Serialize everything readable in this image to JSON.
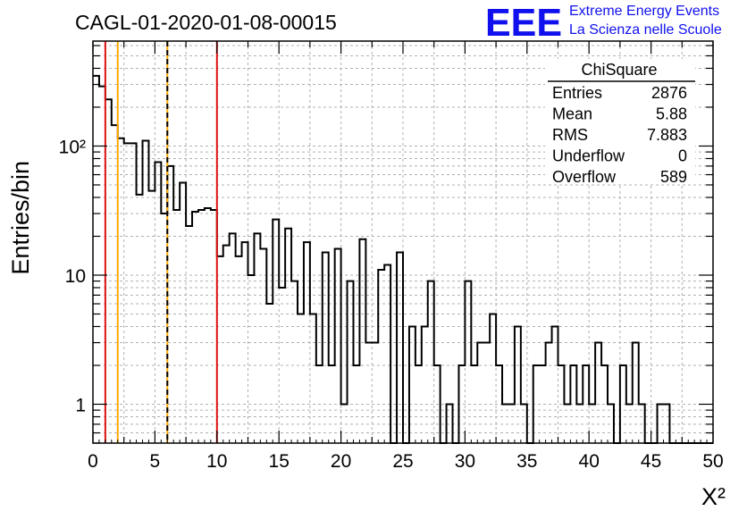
{
  "chart_data": {
    "type": "bar",
    "title": "CAGL-01-2020-01-08-00015",
    "xlabel": "X²",
    "ylabel": "Entries/bin",
    "x_range": [
      0,
      50
    ],
    "y_range": [
      0.5,
      650
    ],
    "y_scale": "log",
    "grid": true,
    "bin_width": 0.5,
    "x_ticks": [
      "0",
      "5",
      "10",
      "15",
      "20",
      "25",
      "30",
      "35",
      "40",
      "45",
      "50"
    ],
    "y_ticks": [
      {
        "value": 1,
        "label": "1"
      },
      {
        "value": 10,
        "label": "10"
      },
      {
        "value": 100,
        "label": "10²"
      }
    ],
    "bins": [
      {
        "x": 0.0,
        "y": 350
      },
      {
        "x": 0.5,
        "y": 290
      },
      {
        "x": 1.0,
        "y": 230
      },
      {
        "x": 1.5,
        "y": 145
      },
      {
        "x": 2.0,
        "y": 115
      },
      {
        "x": 2.5,
        "y": 105
      },
      {
        "x": 3.0,
        "y": 105
      },
      {
        "x": 3.5,
        "y": 42
      },
      {
        "x": 4.0,
        "y": 110
      },
      {
        "x": 4.5,
        "y": 45
      },
      {
        "x": 5.0,
        "y": 75
      },
      {
        "x": 5.5,
        "y": 30
      },
      {
        "x": 6.0,
        "y": 70
      },
      {
        "x": 6.5,
        "y": 32
      },
      {
        "x": 7.0,
        "y": 52
      },
      {
        "x": 7.5,
        "y": 24
      },
      {
        "x": 8.0,
        "y": 31
      },
      {
        "x": 8.5,
        "y": 32
      },
      {
        "x": 9.0,
        "y": 33
      },
      {
        "x": 9.5,
        "y": 32
      },
      {
        "x": 10.0,
        "y": 14
      },
      {
        "x": 10.5,
        "y": 17
      },
      {
        "x": 11.0,
        "y": 21
      },
      {
        "x": 11.5,
        "y": 14
      },
      {
        "x": 12.0,
        "y": 18
      },
      {
        "x": 12.5,
        "y": 10
      },
      {
        "x": 13.0,
        "y": 21
      },
      {
        "x": 13.5,
        "y": 16
      },
      {
        "x": 14.0,
        "y": 6
      },
      {
        "x": 14.5,
        "y": 27
      },
      {
        "x": 15.0,
        "y": 8
      },
      {
        "x": 15.5,
        "y": 23
      },
      {
        "x": 16.0,
        "y": 9
      },
      {
        "x": 16.5,
        "y": 5
      },
      {
        "x": 17.0,
        "y": 18
      },
      {
        "x": 17.5,
        "y": 5
      },
      {
        "x": 18.0,
        "y": 2
      },
      {
        "x": 18.5,
        "y": 15
      },
      {
        "x": 19.0,
        "y": 2
      },
      {
        "x": 19.5,
        "y": 16
      },
      {
        "x": 20.0,
        "y": 1
      },
      {
        "x": 20.5,
        "y": 9
      },
      {
        "x": 21.0,
        "y": 2
      },
      {
        "x": 21.5,
        "y": 19
      },
      {
        "x": 22.0,
        "y": 3
      },
      {
        "x": 22.5,
        "y": 3
      },
      {
        "x": 23.0,
        "y": 11
      },
      {
        "x": 23.5,
        "y": 12
      },
      {
        "x": 24.0,
        "y": 0
      },
      {
        "x": 24.5,
        "y": 15
      },
      {
        "x": 25.0,
        "y": 0
      },
      {
        "x": 25.5,
        "y": 4
      },
      {
        "x": 26.0,
        "y": 2
      },
      {
        "x": 26.5,
        "y": 4
      },
      {
        "x": 27.0,
        "y": 9
      },
      {
        "x": 27.5,
        "y": 2
      },
      {
        "x": 28.0,
        "y": 0
      },
      {
        "x": 28.5,
        "y": 1
      },
      {
        "x": 29.0,
        "y": 0
      },
      {
        "x": 29.5,
        "y": 2
      },
      {
        "x": 30.0,
        "y": 9
      },
      {
        "x": 30.5,
        "y": 2
      },
      {
        "x": 31.0,
        "y": 3
      },
      {
        "x": 31.5,
        "y": 3
      },
      {
        "x": 32.0,
        "y": 5
      },
      {
        "x": 32.5,
        "y": 2
      },
      {
        "x": 33.0,
        "y": 1
      },
      {
        "x": 33.5,
        "y": 1
      },
      {
        "x": 34.0,
        "y": 4
      },
      {
        "x": 34.5,
        "y": 1
      },
      {
        "x": 35.0,
        "y": 0
      },
      {
        "x": 35.5,
        "y": 2
      },
      {
        "x": 36.0,
        "y": 2
      },
      {
        "x": 36.5,
        "y": 3
      },
      {
        "x": 37.0,
        "y": 4
      },
      {
        "x": 37.5,
        "y": 2
      },
      {
        "x": 38.0,
        "y": 1
      },
      {
        "x": 38.5,
        "y": 2
      },
      {
        "x": 39.0,
        "y": 1
      },
      {
        "x": 39.5,
        "y": 2
      },
      {
        "x": 40.0,
        "y": 1
      },
      {
        "x": 40.5,
        "y": 3
      },
      {
        "x": 41.0,
        "y": 2
      },
      {
        "x": 41.5,
        "y": 1
      },
      {
        "x": 42.0,
        "y": 0
      },
      {
        "x": 42.5,
        "y": 2
      },
      {
        "x": 43.0,
        "y": 1
      },
      {
        "x": 43.5,
        "y": 3
      },
      {
        "x": 44.0,
        "y": 1
      },
      {
        "x": 44.5,
        "y": 0
      },
      {
        "x": 45.0,
        "y": 0
      },
      {
        "x": 45.5,
        "y": 1
      },
      {
        "x": 46.0,
        "y": 1
      },
      {
        "x": 46.5,
        "y": 0
      },
      {
        "x": 47.0,
        "y": 0
      },
      {
        "x": 47.5,
        "y": 0
      },
      {
        "x": 48.0,
        "y": 0
      },
      {
        "x": 48.5,
        "y": 0
      },
      {
        "x": 49.0,
        "y": 0
      },
      {
        "x": 49.5,
        "y": 0
      }
    ],
    "vertical_lines": [
      {
        "x": 1,
        "color": "#dd1111",
        "style": "solid"
      },
      {
        "x": 2,
        "color": "#ffaa00",
        "style": "solid"
      },
      {
        "x": 6,
        "color": "#ffaa00",
        "style": "solid"
      },
      {
        "x": 6,
        "color": "#000000",
        "style": "dashed"
      },
      {
        "x": 10,
        "color": "#dd1111",
        "style": "solid"
      }
    ],
    "stats_box": {
      "title": "ChiSquare",
      "rows": [
        {
          "label": "Entries",
          "value": "2876"
        },
        {
          "label": "Mean",
          "value": "5.88"
        },
        {
          "label": "RMS",
          "value": "7.883"
        },
        {
          "label": "Underflow",
          "value": "0"
        },
        {
          "label": "Overflow",
          "value": "589"
        }
      ]
    }
  },
  "logo": {
    "mark": "EEE",
    "line1": "Extreme Energy Events",
    "line2": "La Scienza nelle Scuole",
    "color": "#1010ee"
  }
}
